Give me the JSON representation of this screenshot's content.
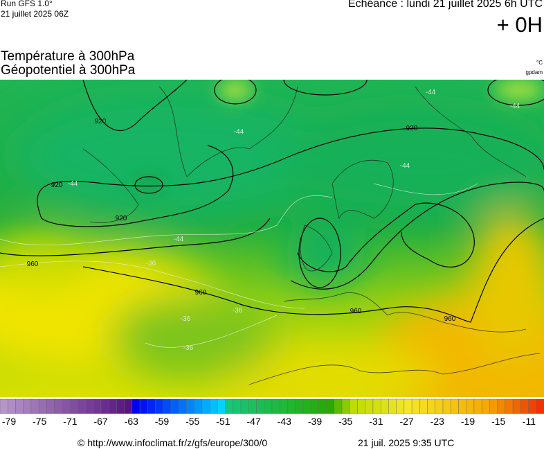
{
  "header": {
    "run": "Run GFS 1.0°",
    "run_date": "21 juillet 2025 06Z",
    "forecast": "Echéance : lundi 21 juillet 2025 6h UTC",
    "lead": "+ 0H",
    "title_temperature": "Température à 300hPa",
    "title_geopotential": "Géopotentiel à 300hPa",
    "unit_temperature": "°C",
    "unit_geopotential": "gpdam"
  },
  "map": {
    "geopotential_labels": [
      920,
      920,
      920,
      920,
      960,
      960,
      960,
      960
    ],
    "temperature_labels": [
      -44,
      -44,
      -44,
      -44,
      -44,
      -44,
      -36,
      -36,
      -36,
      -36
    ]
  },
  "colorbar": {
    "labels": [
      -79,
      -75,
      -71,
      -67,
      -63,
      -59,
      -55,
      -51,
      -47,
      -43,
      -39,
      -35,
      -31,
      -27,
      -23,
      -19,
      -15,
      -11
    ]
  },
  "footer": {
    "url": "© http://www.infoclimat.fr/z/gfs/europe/300/0",
    "timestamp": "21 juil. 2025  9:35 UTC"
  }
}
